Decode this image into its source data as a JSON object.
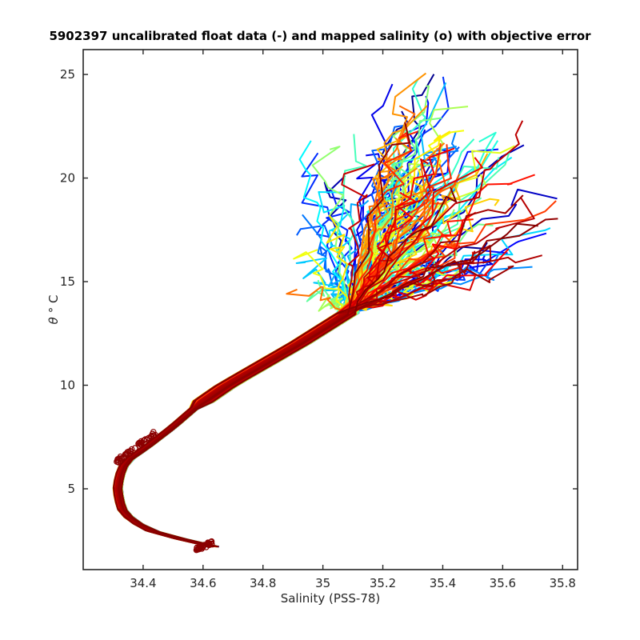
{
  "chart_data": {
    "type": "line",
    "title": "5902397 uncalibrated float data (-) and mapped salinity (o) with objective error",
    "xlabel": "Salinity (PSS-78)",
    "ylabel_symbol": "θ",
    "ylabel_unit": "° C",
    "xlim": [
      34.2,
      35.85
    ],
    "ylim": [
      1.1,
      26.2
    ],
    "xticks": [
      34.4,
      34.6,
      34.8,
      35,
      35.2,
      35.4,
      35.6,
      35.8
    ],
    "xtick_labels": [
      "34.4",
      "34.6",
      "34.8",
      "35",
      "35.2",
      "35.4",
      "35.6",
      "35.8"
    ],
    "yticks": [
      5,
      10,
      15,
      20,
      25
    ],
    "ytick_labels": [
      "5",
      "10",
      "15",
      "20",
      "25"
    ],
    "colormap": "jet",
    "colormap_stops": [
      "#00008f",
      "#0000ff",
      "#0080ff",
      "#00ffff",
      "#80ff80",
      "#ffff00",
      "#ff8000",
      "#ff0000",
      "#800000"
    ],
    "marker_color": "#8b0000",
    "series_count": 150,
    "base_profile": {
      "theta": [
        2.2,
        2.6,
        3.0,
        3.5,
        4.0,
        4.5,
        5.0,
        5.5,
        6.0,
        6.4,
        7.0,
        8.0,
        9.0,
        10.0,
        11.0,
        12.0,
        13.0,
        14.0,
        15.0,
        16.0
      ],
      "salinity": [
        34.64,
        34.52,
        34.42,
        34.36,
        34.33,
        34.32,
        34.315,
        34.32,
        34.33,
        34.35,
        34.41,
        34.5,
        34.58,
        34.68,
        34.8,
        34.92,
        35.03,
        35.14,
        35.26,
        35.38
      ]
    },
    "surface_clusters": [
      {
        "salinity": [
          34.9,
          35.3
        ],
        "theta": [
          14,
          22.5
        ]
      },
      {
        "salinity": [
          35.2,
          35.45
        ],
        "theta": [
          16,
          25.2
        ]
      },
      {
        "salinity": [
          35.35,
          35.75
        ],
        "theta": [
          15,
          22.8
        ]
      }
    ],
    "mapped_salinity_markers": {
      "deep": {
        "salinity": [
          34.58,
          34.63
        ],
        "theta": [
          2.1,
          2.4
        ]
      },
      "mid": {
        "salinity": [
          34.31,
          34.44
        ],
        "theta": [
          6.3,
          7.7
        ]
      }
    }
  }
}
